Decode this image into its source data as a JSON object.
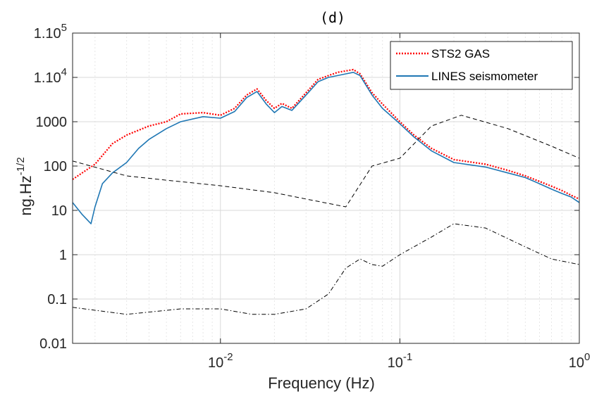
{
  "chart_data": {
    "type": "line",
    "title": "(d)",
    "xlabel": "Frequency (Hz)",
    "ylabel": {
      "base": "ng.Hz",
      "superscript": "-1/2"
    },
    "xscale": "log",
    "yscale": "log",
    "xlim": [
      0.0015,
      1
    ],
    "ylim": [
      0.01,
      100000
    ],
    "grid": true,
    "legend_position": "top-right",
    "x_ticks": [
      {
        "value": 0.01,
        "base": "10",
        "exp": "-2"
      },
      {
        "value": 0.1,
        "base": "10",
        "exp": "-1"
      },
      {
        "value": 1,
        "base": "10",
        "exp": "0"
      }
    ],
    "y_ticks": [
      {
        "value": 0.01,
        "label": "0.01"
      },
      {
        "value": 0.1,
        "label": "0.1"
      },
      {
        "value": 1,
        "label": "1"
      },
      {
        "value": 10,
        "label": "10"
      },
      {
        "value": 100,
        "label": "100"
      },
      {
        "value": 1000,
        "label": "1000"
      },
      {
        "value": 10000,
        "label": "1.10",
        "exp": "4"
      },
      {
        "value": 100000,
        "label": "1.10",
        "exp": "5"
      }
    ],
    "series": [
      {
        "name": "STS2 GAS",
        "color": "#ff0000",
        "style": "dotted",
        "x": [
          0.0015,
          0.002,
          0.0025,
          0.003,
          0.004,
          0.005,
          0.006,
          0.008,
          0.01,
          0.012,
          0.014,
          0.016,
          0.018,
          0.02,
          0.022,
          0.025,
          0.03,
          0.035,
          0.04,
          0.045,
          0.05,
          0.055,
          0.06,
          0.07,
          0.08,
          0.1,
          0.12,
          0.15,
          0.2,
          0.3,
          0.4,
          0.5,
          0.6,
          0.7,
          0.8,
          0.9,
          1.0
        ],
        "y": [
          50,
          110,
          320,
          500,
          800,
          1000,
          1500,
          1600,
          1400,
          2000,
          4000,
          5500,
          3000,
          2000,
          2600,
          2000,
          4500,
          9000,
          11000,
          13000,
          14000,
          15000,
          12000,
          4500,
          2500,
          1000,
          500,
          250,
          140,
          110,
          80,
          60,
          45,
          35,
          28,
          22,
          18
        ]
      },
      {
        "name": "LINES seismometer",
        "color": "#1f77b4",
        "style": "solid",
        "x": [
          0.0015,
          0.0017,
          0.0019,
          0.002,
          0.0022,
          0.0025,
          0.003,
          0.0035,
          0.004,
          0.005,
          0.006,
          0.008,
          0.01,
          0.012,
          0.014,
          0.016,
          0.018,
          0.02,
          0.022,
          0.025,
          0.03,
          0.035,
          0.04,
          0.045,
          0.05,
          0.055,
          0.06,
          0.07,
          0.08,
          0.1,
          0.12,
          0.15,
          0.2,
          0.3,
          0.4,
          0.5,
          0.6,
          0.7,
          0.8,
          0.9,
          1.0
        ],
        "y": [
          15,
          8,
          5,
          12,
          40,
          70,
          120,
          250,
          400,
          700,
          1000,
          1300,
          1200,
          1700,
          3500,
          4800,
          2500,
          1600,
          2200,
          1800,
          4000,
          8000,
          10000,
          11000,
          12000,
          13000,
          11000,
          4000,
          2000,
          900,
          450,
          220,
          120,
          95,
          70,
          55,
          40,
          30,
          24,
          20,
          15
        ]
      },
      {
        "name": "",
        "color": "#000000",
        "style": "dashed",
        "x": [
          0.0015,
          0.003,
          0.005,
          0.01,
          0.02,
          0.03,
          0.05,
          0.07,
          0.1,
          0.15,
          0.22,
          0.4,
          0.7,
          1.0
        ],
        "y": [
          130,
          60,
          48,
          36,
          25,
          18,
          12,
          100,
          150,
          800,
          1400,
          700,
          280,
          150
        ]
      },
      {
        "name": "",
        "color": "#000000",
        "style": "dashdot",
        "x": [
          0.0015,
          0.003,
          0.006,
          0.01,
          0.015,
          0.02,
          0.03,
          0.04,
          0.05,
          0.06,
          0.07,
          0.08,
          0.1,
          0.15,
          0.2,
          0.3,
          0.5,
          0.7,
          1.0
        ],
        "y": [
          0.065,
          0.045,
          0.06,
          0.06,
          0.045,
          0.045,
          0.06,
          0.13,
          0.5,
          0.8,
          0.6,
          0.55,
          1.0,
          2.5,
          5.0,
          4.0,
          1.5,
          0.8,
          0.6
        ]
      }
    ]
  }
}
